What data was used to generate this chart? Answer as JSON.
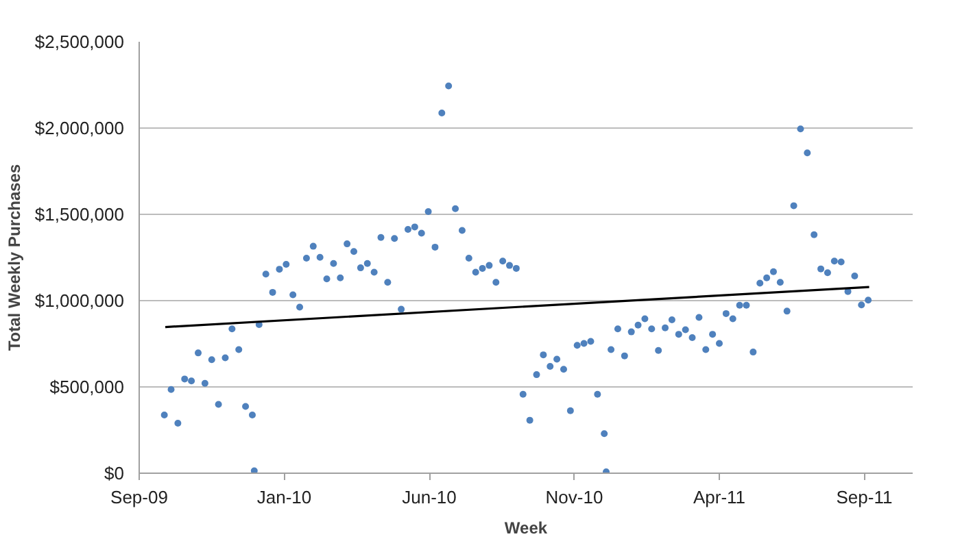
{
  "chart_data": {
    "type": "scatter",
    "xlabel": "Week",
    "ylabel": "Total Weekly Purchases",
    "xlim": [
      "2009-09-01",
      "2011-11-10"
    ],
    "xticks": [
      {
        "value": "2009-09-01",
        "label": "Sep-09"
      },
      {
        "value": "2010-01-29",
        "label": "Jan-10"
      },
      {
        "value": "2010-06-28",
        "label": "Jun-10"
      },
      {
        "value": "2010-11-25",
        "label": "Nov-10"
      },
      {
        "value": "2011-04-24",
        "label": "Apr-11"
      },
      {
        "value": "2011-09-21",
        "label": "Sep-11"
      }
    ],
    "ylim": [
      0,
      2500000
    ],
    "yticks": [
      {
        "value": 0,
        "label": "$0"
      },
      {
        "value": 500000,
        "label": "$500,000"
      },
      {
        "value": 1000000,
        "label": "$1,000,000"
      },
      {
        "value": 1500000,
        "label": "$1,500,000"
      },
      {
        "value": 2000000,
        "label": "$2,000,000"
      },
      {
        "value": 2500000,
        "label": "$2,500,000"
      }
    ],
    "grid": "y",
    "marker": "circle",
    "series": [
      {
        "color": "#4f81bd",
        "x": [
          "2009-09-27",
          "2009-10-04",
          "2009-10-11",
          "2009-10-18",
          "2009-10-25",
          "2009-11-01",
          "2009-11-08",
          "2009-11-15",
          "2009-11-22",
          "2009-11-29",
          "2009-12-06",
          "2009-12-13",
          "2009-12-20",
          "2009-12-27",
          "2009-12-29",
          "2010-01-03",
          "2010-01-10",
          "2010-01-17",
          "2010-01-24",
          "2010-01-31",
          "2010-02-07",
          "2010-02-14",
          "2010-02-21",
          "2010-02-28",
          "2010-03-07",
          "2010-03-14",
          "2010-03-21",
          "2010-03-28",
          "2010-04-04",
          "2010-04-11",
          "2010-04-18",
          "2010-04-25",
          "2010-05-02",
          "2010-05-09",
          "2010-05-16",
          "2010-05-23",
          "2010-05-30",
          "2010-06-06",
          "2010-06-13",
          "2010-06-20",
          "2010-06-27",
          "2010-07-04",
          "2010-07-11",
          "2010-07-18",
          "2010-07-25",
          "2010-08-01",
          "2010-08-08",
          "2010-08-15",
          "2010-08-22",
          "2010-08-29",
          "2010-09-05",
          "2010-09-12",
          "2010-09-19",
          "2010-09-26",
          "2010-10-03",
          "2010-10-10",
          "2010-10-17",
          "2010-10-24",
          "2010-10-31",
          "2010-11-07",
          "2010-11-14",
          "2010-11-21",
          "2010-11-28",
          "2010-12-05",
          "2010-12-12",
          "2010-12-19",
          "2010-12-26",
          "2010-12-28",
          "2011-01-02",
          "2011-01-09",
          "2011-01-16",
          "2011-01-23",
          "2011-01-30",
          "2011-02-06",
          "2011-02-13",
          "2011-02-20",
          "2011-02-27",
          "2011-03-06",
          "2011-03-13",
          "2011-03-20",
          "2011-03-27",
          "2011-04-03",
          "2011-04-10",
          "2011-04-17",
          "2011-04-24",
          "2011-05-01",
          "2011-05-08",
          "2011-05-15",
          "2011-05-22",
          "2011-05-29",
          "2011-06-05",
          "2011-06-12",
          "2011-06-19",
          "2011-06-26",
          "2011-07-03",
          "2011-07-10",
          "2011-07-17",
          "2011-07-24",
          "2011-07-31",
          "2011-08-07",
          "2011-08-14",
          "2011-08-21",
          "2011-08-28",
          "2011-09-04",
          "2011-09-11",
          "2011-09-18",
          "2011-09-25"
        ],
        "values": [
          337000,
          485000,
          290000,
          546000,
          535000,
          697000,
          521000,
          658000,
          399000,
          669000,
          836000,
          716000,
          387000,
          337000,
          14000,
          861000,
          1154000,
          1048000,
          1182000,
          1210000,
          1034000,
          962000,
          1246000,
          1315000,
          1251000,
          1126000,
          1215000,
          1132000,
          1329000,
          1285000,
          1190000,
          1215000,
          1165000,
          1366000,
          1106000,
          1360000,
          950000,
          1413000,
          1427000,
          1391000,
          1516000,
          1310000,
          2087000,
          2244000,
          1533000,
          1407000,
          1246000,
          1165000,
          1187000,
          1204000,
          1106000,
          1229000,
          1204000,
          1187000,
          457000,
          307000,
          571000,
          686000,
          619000,
          661000,
          602000,
          362000,
          741000,
          752000,
          764000,
          457000,
          229000,
          8000,
          716000,
          836000,
          680000,
          819000,
          858000,
          895000,
          836000,
          711000,
          842000,
          889000,
          805000,
          831000,
          786000,
          903000,
          716000,
          805000,
          752000,
          925000,
          895000,
          973000,
          973000,
          702000,
          1101000,
          1132000,
          1168000,
          1106000,
          939000,
          1550000,
          1995000,
          1856000,
          1382000,
          1184000,
          1162000,
          1229000,
          1224000,
          1053000,
          1143000,
          975000,
          1003000
        ]
      },
      {
        "type": "line",
        "color": "#000000",
        "marker": "none",
        "line_style": "solid",
        "x": [
          "2009-09-28",
          "2011-09-26"
        ],
        "values": [
          847000,
          1079000
        ]
      }
    ]
  }
}
